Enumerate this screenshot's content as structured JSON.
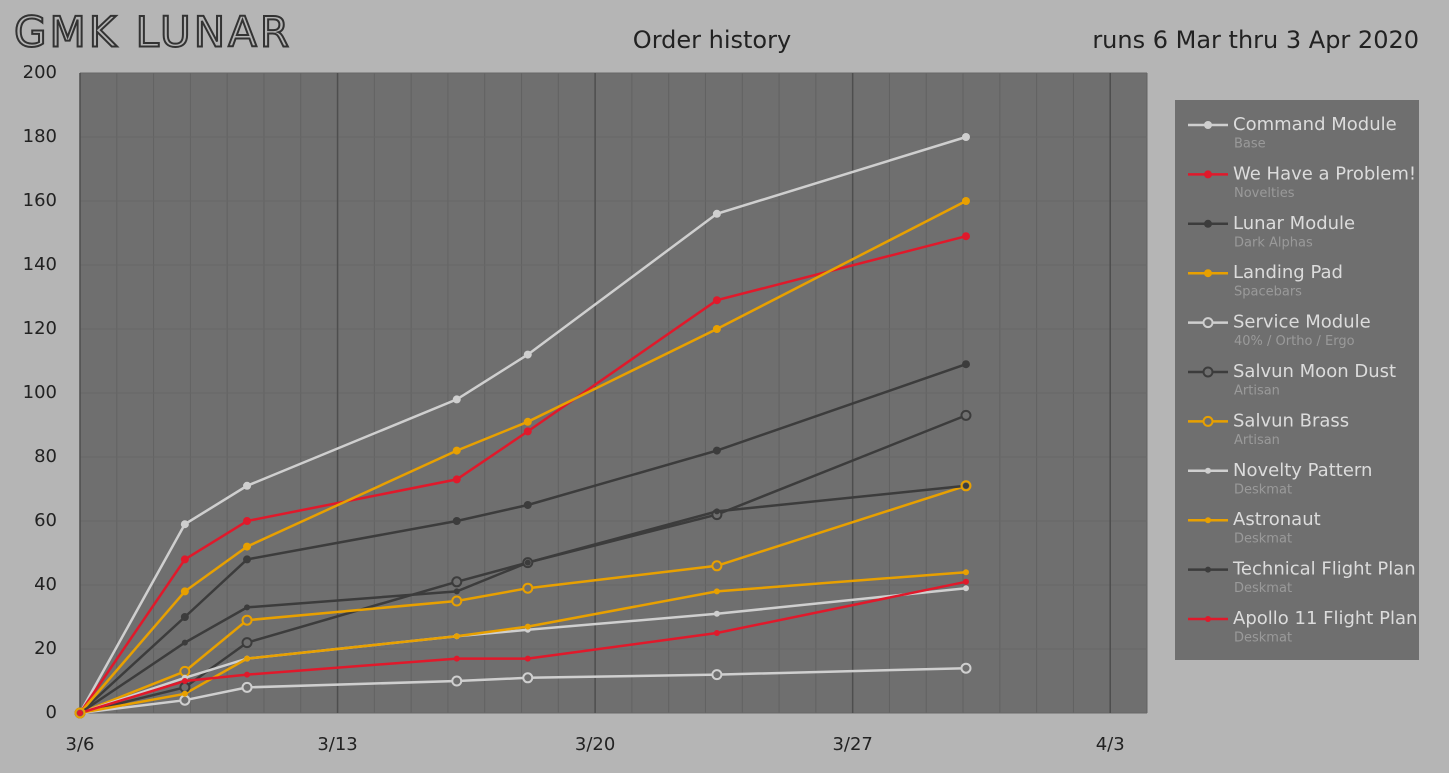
{
  "chart_data": {
    "type": "line",
    "brand": "GMK LUNAR",
    "title": "Order history",
    "subtitle": "runs 6 Mar thru 3 Apr 2020",
    "x": [
      0,
      2.85,
      4.54,
      10.24,
      12.17,
      17.31,
      24.08
    ],
    "xlim": [
      0,
      29
    ],
    "xticks": [
      {
        "value": 0,
        "label": "3/6"
      },
      {
        "value": 7,
        "label": "3/13"
      },
      {
        "value": 14,
        "label": "3/20"
      },
      {
        "value": 21,
        "label": "3/27"
      },
      {
        "value": 28,
        "label": "4/3"
      }
    ],
    "ylim": [
      0,
      200
    ],
    "yticks": [
      0,
      20,
      40,
      60,
      80,
      100,
      120,
      140,
      160,
      180,
      200
    ],
    "grid": true,
    "legend": "right",
    "series": [
      {
        "name": "Command Module",
        "sub": "Base",
        "color": "#cfcfcf",
        "marker": "filled",
        "values": [
          0,
          59,
          71,
          98,
          112,
          156,
          180
        ]
      },
      {
        "name": "We Have a Problem!",
        "sub": "Novelties",
        "color": "#e0192b",
        "marker": "filled",
        "values": [
          0,
          48,
          60,
          73,
          88,
          129,
          149
        ]
      },
      {
        "name": "Lunar Module",
        "sub": "Dark Alphas",
        "color": "#3c3c3c",
        "marker": "filled",
        "values": [
          0,
          30,
          48,
          60,
          65,
          82,
          109
        ]
      },
      {
        "name": "Landing Pad",
        "sub": "Spacebars",
        "color": "#e8a000",
        "marker": "filled",
        "values": [
          0,
          38,
          52,
          82,
          91,
          120,
          160
        ]
      },
      {
        "name": "Service Module",
        "sub": "40% / Ortho / Ergo",
        "color": "#cfcfcf",
        "marker": "open",
        "values": [
          0,
          4,
          8,
          10,
          11,
          12,
          14
        ]
      },
      {
        "name": "Salvun Moon Dust",
        "sub": "Artisan",
        "color": "#3c3c3c",
        "marker": "open",
        "values": [
          0,
          8,
          22,
          41,
          47,
          62,
          93
        ]
      },
      {
        "name": "Salvun Brass",
        "sub": "Artisan",
        "color": "#e8a000",
        "marker": "open",
        "values": [
          0,
          13,
          29,
          35,
          39,
          46,
          71
        ]
      },
      {
        "name": "Novelty Pattern",
        "sub": "Deskmat",
        "color": "#cfcfcf",
        "marker": "small",
        "values": [
          0,
          11,
          17,
          24,
          26,
          31,
          39
        ]
      },
      {
        "name": "Astronaut",
        "sub": "Deskmat",
        "color": "#e8a000",
        "marker": "small",
        "values": [
          0,
          6,
          17,
          24,
          27,
          38,
          44
        ]
      },
      {
        "name": "Technical Flight Plan",
        "sub": "Deskmat",
        "color": "#3c3c3c",
        "marker": "small",
        "values": [
          0,
          22,
          33,
          38,
          47,
          63,
          71
        ]
      },
      {
        "name": "Apollo 11 Flight Plan",
        "sub": "Deskmat",
        "color": "#e0192b",
        "marker": "small",
        "values": [
          0,
          10,
          12,
          17,
          17,
          25,
          41
        ]
      }
    ]
  }
}
